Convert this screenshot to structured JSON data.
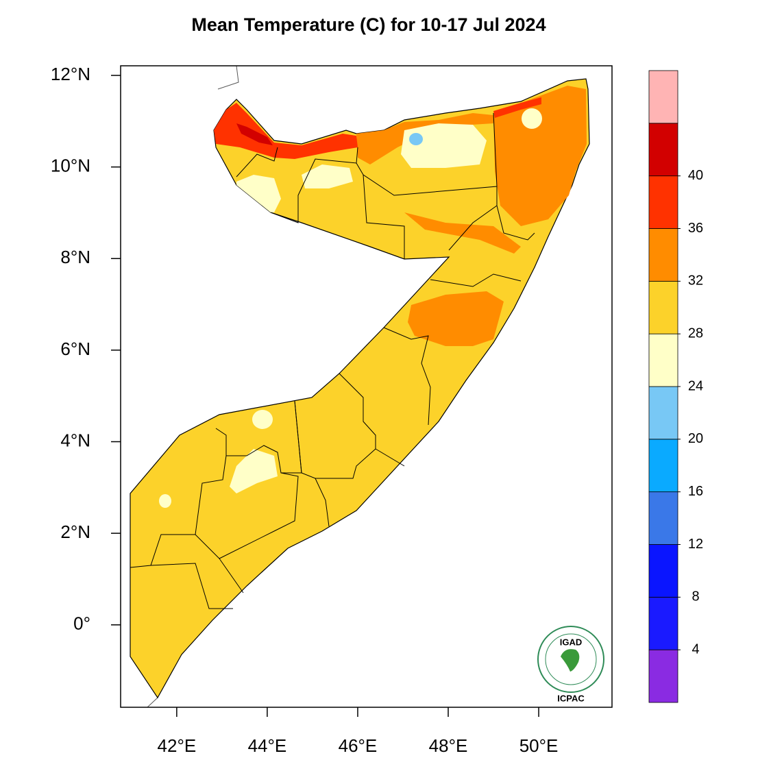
{
  "chart_data": {
    "type": "map",
    "title": "Mean Temperature (C) for 10-17 Jul 2024",
    "xlim": [
      40.76,
      51.62
    ],
    "ylim": [
      -1.8,
      12.21
    ],
    "xticks": [
      {
        "value": 42,
        "label": "42°E"
      },
      {
        "value": 44,
        "label": "44°E"
      },
      {
        "value": 46,
        "label": "46°E"
      },
      {
        "value": 48,
        "label": "48°E"
      },
      {
        "value": 50,
        "label": "50°E"
      }
    ],
    "yticks": [
      {
        "value": 0,
        "label": "0°"
      },
      {
        "value": 2,
        "label": "2°N"
      },
      {
        "value": 4,
        "label": "4°N"
      },
      {
        "value": 6,
        "label": "6°N"
      },
      {
        "value": 8,
        "label": "8°N"
      },
      {
        "value": 10,
        "label": "10°N"
      },
      {
        "value": 12,
        "label": "12°N"
      }
    ],
    "colorbar": {
      "levels": [
        4,
        8,
        12,
        16,
        20,
        24,
        28,
        32,
        36,
        40
      ],
      "colors": [
        "#8a2be2",
        "#1a1aff",
        "#0a15ff",
        "#3a78e8",
        "#0aaaff",
        "#78c8f5",
        "#ffffc8",
        "#fcd22a",
        "#ff8c00",
        "#ff3200",
        "#d20000",
        "#ffb4b4"
      ]
    },
    "logo": {
      "top": "IGAD",
      "bottom": "ICPAC"
    }
  }
}
